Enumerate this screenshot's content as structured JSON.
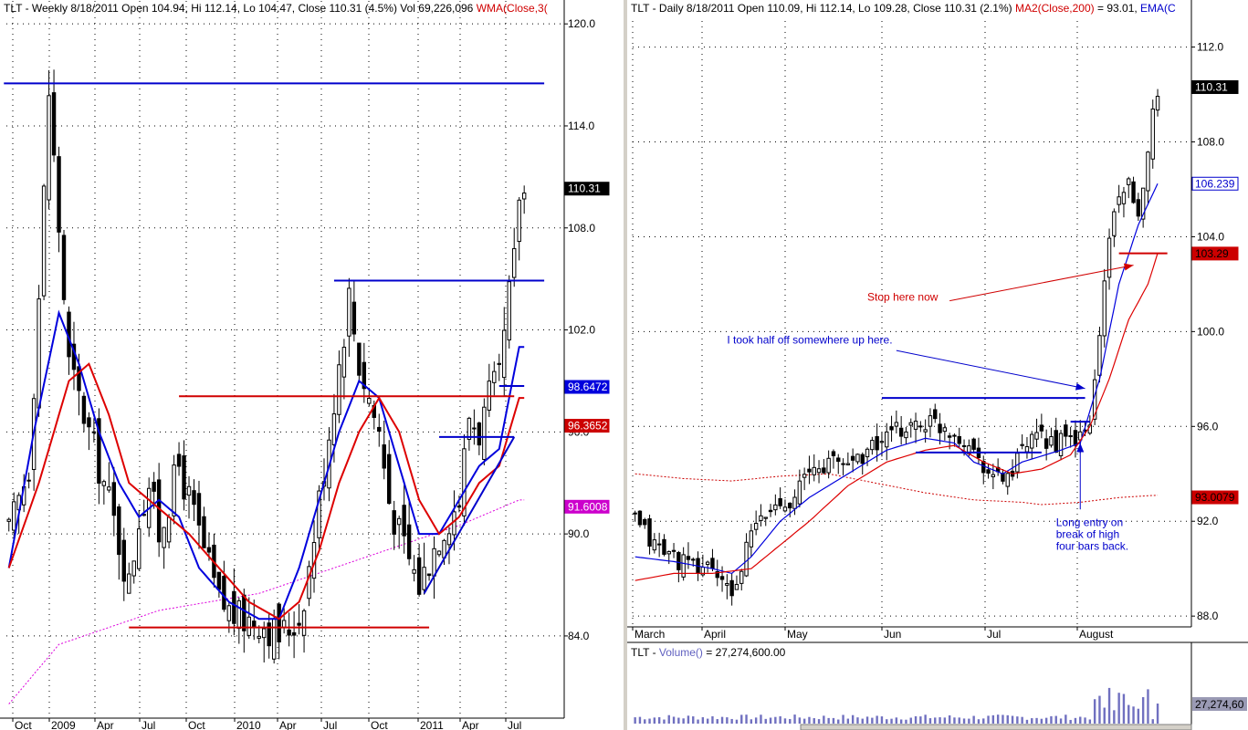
{
  "weekly": {
    "header": {
      "symbol": "TLT",
      "info": " - Weekly 8/18/2011 Open 104.94, Hi 112.14, Lo 104.47, Close 110.31 (4.5%) Vol 69,226,096 ",
      "indicator": "WMA(Close,3("
    }
  },
  "daily": {
    "header": {
      "symbol": "TLT",
      "info": " - Daily 8/18/2011 Open 110.09, Hi 112.14, Lo 109.28, Close 110.31 (2.1%) ",
      "ma": "MA2(Close,200)",
      "ma_value": " = 93.01, ",
      "ema": "EMA(C"
    },
    "volume_header": {
      "symbol": "TLT",
      "sep": " - ",
      "indicator": "Volume()",
      "value": " = 27,274,600.00"
    }
  },
  "chart_data": [
    {
      "name": "weekly",
      "type": "candlestick",
      "y_ticks": [
        84.0,
        90.0,
        96.0,
        102.0,
        108.0,
        114.0,
        120.0
      ],
      "y_tick_labels": [
        "84.0",
        "90.0",
        "96.0",
        "102.0",
        "108.0",
        "114.0",
        "120.0"
      ],
      "ylim": [
        80.4,
        120.6
      ],
      "x_labels": [
        "Oct",
        "2009",
        "Apr",
        "Jul",
        "Oct",
        "2010",
        "Apr",
        "Jul",
        "Oct",
        "2011",
        "Apr",
        "Jul"
      ],
      "grid": true,
      "close_knots": [
        [
          0,
          90
        ],
        [
          4,
          94
        ],
        [
          6,
          104
        ],
        [
          8,
          116
        ],
        [
          10,
          108
        ],
        [
          12,
          100
        ],
        [
          16,
          96
        ],
        [
          20,
          92
        ],
        [
          24,
          87
        ],
        [
          26,
          91
        ],
        [
          28,
          93
        ],
        [
          30,
          90
        ],
        [
          34,
          94
        ],
        [
          38,
          90
        ],
        [
          42,
          86
        ],
        [
          46,
          85
        ],
        [
          50,
          85
        ],
        [
          54,
          84
        ],
        [
          58,
          85
        ],
        [
          60,
          88
        ],
        [
          62,
          92
        ],
        [
          64,
          96
        ],
        [
          66,
          100
        ],
        [
          68,
          104
        ],
        [
          70,
          100
        ],
        [
          72,
          98
        ],
        [
          74,
          96
        ],
        [
          76,
          92
        ],
        [
          78,
          90
        ],
        [
          82,
          87
        ],
        [
          86,
          90
        ],
        [
          90,
          92
        ],
        [
          92,
          97
        ],
        [
          94,
          96
        ],
        [
          96,
          98
        ],
        [
          98,
          99
        ],
        [
          100,
          104
        ],
        [
          101,
          106
        ],
        [
          102,
          110
        ]
      ],
      "wma_blue_knots": [
        [
          0,
          88
        ],
        [
          5,
          96
        ],
        [
          10,
          103
        ],
        [
          14,
          100
        ],
        [
          18,
          96
        ],
        [
          22,
          93
        ],
        [
          26,
          91
        ],
        [
          30,
          92
        ],
        [
          34,
          91
        ],
        [
          38,
          88
        ],
        [
          44,
          86
        ],
        [
          50,
          85
        ],
        [
          54,
          85
        ],
        [
          58,
          88
        ],
        [
          62,
          92
        ],
        [
          66,
          96
        ],
        [
          70,
          99
        ],
        [
          74,
          98
        ],
        [
          78,
          94
        ],
        [
          82,
          90
        ],
        [
          86,
          90
        ],
        [
          90,
          92
        ],
        [
          94,
          94
        ],
        [
          98,
          95
        ],
        [
          102,
          101
        ]
      ],
      "wma_red_knots": [
        [
          0,
          88
        ],
        [
          6,
          93
        ],
        [
          12,
          99
        ],
        [
          16,
          100
        ],
        [
          20,
          97
        ],
        [
          24,
          93
        ],
        [
          28,
          92
        ],
        [
          32,
          91
        ],
        [
          36,
          90
        ],
        [
          42,
          88
        ],
        [
          48,
          86
        ],
        [
          54,
          85
        ],
        [
          58,
          86
        ],
        [
          62,
          89
        ],
        [
          66,
          93
        ],
        [
          70,
          96
        ],
        [
          74,
          98
        ],
        [
          78,
          96
        ],
        [
          82,
          92
        ],
        [
          86,
          90
        ],
        [
          90,
          91
        ],
        [
          94,
          93
        ],
        [
          98,
          94
        ],
        [
          102,
          98
        ]
      ],
      "ma_pink_knots": [
        [
          0,
          80
        ],
        [
          10,
          83.5
        ],
        [
          20,
          84.5
        ],
        [
          30,
          85.5
        ],
        [
          40,
          86
        ],
        [
          50,
          86.5
        ],
        [
          60,
          87.5
        ],
        [
          70,
          88.5
        ],
        [
          80,
          89.5
        ],
        [
          90,
          90.5
        ],
        [
          102,
          92
        ]
      ],
      "levels": [
        {
          "color": "#0000cc",
          "price": 116.5,
          "x_range": [
            -1,
            107
          ]
        },
        {
          "color": "#0000cc",
          "price": 104.9,
          "x_range": [
            65,
            107
          ]
        },
        {
          "color": "#d00000",
          "price": 98.1,
          "x_range": [
            34,
            101
          ]
        },
        {
          "color": "#d00000",
          "price": 84.5,
          "x_range": [
            24,
            84
          ]
        },
        {
          "color": "#0000cc",
          "price": 98.7,
          "x_range": [
            98,
            103
          ]
        },
        {
          "color": "#0000cc",
          "price": 95.7,
          "x_range": [
            86,
            101
          ]
        }
      ],
      "trend_line": {
        "color": "#0000cc",
        "points": [
          [
            83,
            86.5
          ],
          [
            101,
            95.7
          ]
        ]
      },
      "price_tags": [
        {
          "label": "110.31",
          "price": 110.31,
          "bg": "#000000",
          "fg": "#ffffff"
        },
        {
          "label": "98.6472",
          "price": 98.6472,
          "bg": "#0000dd",
          "fg": "#ffffff"
        },
        {
          "label": "96.3652",
          "price": 96.3652,
          "bg": "#cc0000",
          "fg": "#ffffff"
        },
        {
          "label": "91.6008",
          "price": 91.6008,
          "bg": "#cc00cc",
          "fg": "#ffffff"
        }
      ]
    },
    {
      "name": "daily",
      "type": "candlestick",
      "y_ticks": [
        88.0,
        92.0,
        96.0,
        100.0,
        104.0,
        108.0,
        112.0
      ],
      "y_tick_labels": [
        "88.0",
        "92.0",
        "96.0",
        "100.0",
        "104.0",
        "108.0",
        "112.0"
      ],
      "ylim": [
        87.66,
        112.33
      ],
      "x_labels": [
        "March",
        "April",
        "May",
        "Jun",
        "Jul",
        "August"
      ],
      "grid": true,
      "close_knots": [
        [
          0,
          92
        ],
        [
          4,
          91
        ],
        [
          8,
          90.5
        ],
        [
          12,
          90
        ],
        [
          16,
          90.2
        ],
        [
          18,
          89.2
        ],
        [
          20,
          89
        ],
        [
          22,
          90
        ],
        [
          24,
          91.5
        ],
        [
          28,
          92.5
        ],
        [
          32,
          93
        ],
        [
          36,
          94
        ],
        [
          40,
          94.5
        ],
        [
          44,
          94.5
        ],
        [
          48,
          95
        ],
        [
          52,
          95.5
        ],
        [
          56,
          96
        ],
        [
          60,
          96.2
        ],
        [
          64,
          96
        ],
        [
          68,
          95.5
        ],
        [
          72,
          94.5
        ],
        [
          74,
          93.8
        ],
        [
          78,
          94
        ],
        [
          80,
          95
        ],
        [
          84,
          95.5
        ],
        [
          88,
          95.3
        ],
        [
          92,
          95.5
        ],
        [
          94,
          96
        ],
        [
          96,
          100
        ],
        [
          98,
          104
        ],
        [
          100,
          106
        ],
        [
          102,
          106
        ],
        [
          104,
          104.5
        ],
        [
          106,
          108
        ],
        [
          108,
          110.3
        ]
      ],
      "ema_blue_knots": [
        [
          0,
          90.5
        ],
        [
          8,
          90.3
        ],
        [
          16,
          90
        ],
        [
          20,
          89.8
        ],
        [
          24,
          90.5
        ],
        [
          30,
          92
        ],
        [
          36,
          93
        ],
        [
          44,
          94
        ],
        [
          52,
          95
        ],
        [
          60,
          95.5
        ],
        [
          66,
          95.3
        ],
        [
          70,
          94.5
        ],
        [
          76,
          94
        ],
        [
          80,
          94.5
        ],
        [
          88,
          95
        ],
        [
          92,
          95.3
        ],
        [
          96,
          98
        ],
        [
          100,
          102
        ],
        [
          104,
          104.5
        ],
        [
          108,
          106.24
        ]
      ],
      "ma_red_knots": [
        [
          0,
          89.5
        ],
        [
          8,
          89.8
        ],
        [
          16,
          89.8
        ],
        [
          24,
          90
        ],
        [
          30,
          91
        ],
        [
          36,
          92
        ],
        [
          44,
          93.5
        ],
        [
          52,
          94.5
        ],
        [
          60,
          95
        ],
        [
          66,
          95.2
        ],
        [
          72,
          94.5
        ],
        [
          78,
          94
        ],
        [
          84,
          94.2
        ],
        [
          90,
          94.8
        ],
        [
          94,
          96
        ],
        [
          98,
          98
        ],
        [
          102,
          100.5
        ],
        [
          106,
          102
        ],
        [
          108,
          103.3
        ]
      ],
      "ma_dotted_knots": [
        [
          0,
          94
        ],
        [
          10,
          93.8
        ],
        [
          20,
          93.7
        ],
        [
          30,
          93.9
        ],
        [
          40,
          94
        ],
        [
          50,
          93.6
        ],
        [
          60,
          93.2
        ],
        [
          70,
          92.9
        ],
        [
          80,
          92.8
        ],
        [
          84,
          92.7
        ],
        [
          92,
          92.8
        ],
        [
          100,
          93
        ],
        [
          108,
          93.1
        ]
      ],
      "levels": [
        {
          "color": "#0000cc",
          "price": 97.2,
          "x_range": [
            51,
            93
          ]
        },
        {
          "color": "#0000cc",
          "price": 96.2,
          "x_range": [
            90,
            94
          ]
        },
        {
          "color": "#0000cc",
          "price": 94.9,
          "x_range": [
            58,
            84
          ]
        },
        {
          "color": "#d00000",
          "price": 103.3,
          "x_range": [
            100,
            110
          ]
        }
      ],
      "annotations": [
        {
          "text": "Stop here now",
          "color": "#d00000",
          "at": [
            48,
            101.3
          ],
          "arrow_from": [
            65,
            101.3
          ],
          "arrow_to": [
            103,
            102.8
          ]
        },
        {
          "text": "I took half off somewhere up here.",
          "color": "#0000cc",
          "at": [
            19,
            99.5
          ],
          "arrow_from": [
            54,
            99.2
          ],
          "arrow_to": [
            93,
            97.6
          ]
        },
        {
          "text": "Long entry on",
          "color": "#0000cc",
          "at": [
            87,
            91.8
          ]
        },
        {
          "text": "break of high",
          "color": "#0000cc",
          "at": [
            87,
            91.3
          ]
        },
        {
          "text": "four bars back.",
          "color": "#0000cc",
          "at": [
            87,
            90.8
          ],
          "arrow_from": [
            92,
            92.5
          ],
          "arrow_to": [
            92,
            95.3
          ]
        }
      ],
      "price_tags": [
        {
          "label": "110.31",
          "price": 110.31,
          "bg": "#000000",
          "fg": "#ffffff"
        },
        {
          "label": "106.239",
          "price": 106.239,
          "bg": "#ffffff",
          "fg": "#0000cc"
        },
        {
          "label": "103.29",
          "price": 103.29,
          "bg": "#cc0000",
          "fg": "#000000"
        },
        {
          "label": "93.0079",
          "price": 93.0079,
          "bg": "#cc0000",
          "fg": "#000000"
        }
      ],
      "volume_tag": {
        "label": "27,274,60",
        "bg": "#9a9ab4",
        "fg": "#000000"
      }
    }
  ],
  "colors": {
    "up": "#ffffff",
    "down": "#000000",
    "wick": "#000000",
    "grid": "#000000"
  }
}
